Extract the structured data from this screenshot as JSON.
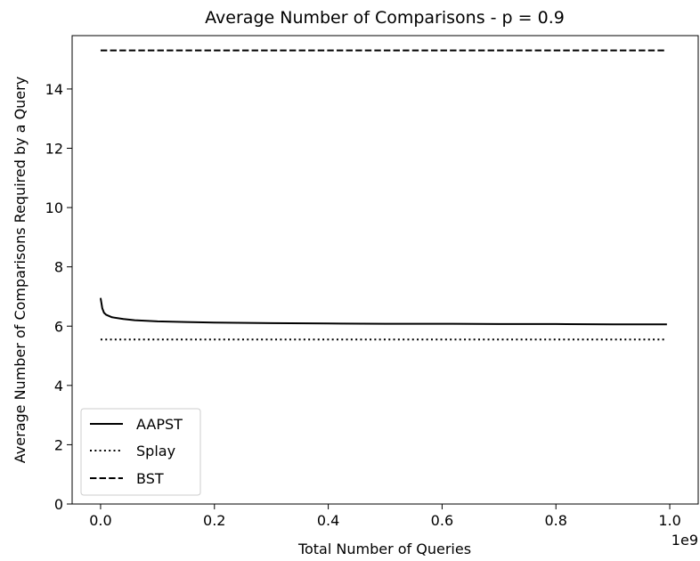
{
  "chart_data": {
    "type": "line",
    "title": "Average Number of Comparisons - p = 0.9",
    "xlabel": "Total Number of Queries",
    "ylabel": "Average Number of Comparisons Required by a Query",
    "x_offset_label": "1e9",
    "xlim": [
      -0.05,
      1.05
    ],
    "ylim": [
      0,
      15.8
    ],
    "x_ticks": [
      0.0,
      0.2,
      0.4,
      0.6,
      0.8,
      1.0
    ],
    "x_tick_labels": [
      "0.0",
      "0.2",
      "0.4",
      "0.6",
      "0.8",
      "1.0"
    ],
    "y_ticks": [
      0,
      2,
      4,
      6,
      8,
      10,
      12,
      14
    ],
    "y_tick_labels": [
      "0",
      "2",
      "4",
      "6",
      "8",
      "10",
      "12",
      "14"
    ],
    "grid": false,
    "legend_position": "lower-left",
    "series": [
      {
        "name": "AAPST",
        "style": "solid",
        "color": "#000000",
        "x": [
          0.0,
          0.003,
          0.006,
          0.01,
          0.02,
          0.04,
          0.06,
          0.1,
          0.15,
          0.2,
          0.3,
          0.4,
          0.5,
          0.6,
          0.7,
          0.8,
          0.9,
          0.995
        ],
        "y": [
          6.95,
          6.6,
          6.45,
          6.38,
          6.3,
          6.24,
          6.2,
          6.16,
          6.14,
          6.12,
          6.1,
          6.09,
          6.08,
          6.08,
          6.07,
          6.07,
          6.06,
          6.06
        ]
      },
      {
        "name": "Splay",
        "style": "dotted",
        "color": "#000000",
        "x": [
          0.0,
          0.995
        ],
        "y": [
          5.55,
          5.55
        ]
      },
      {
        "name": "BST",
        "style": "dashed",
        "color": "#000000",
        "x": [
          0.0,
          0.995
        ],
        "y": [
          15.3,
          15.3
        ]
      }
    ]
  }
}
